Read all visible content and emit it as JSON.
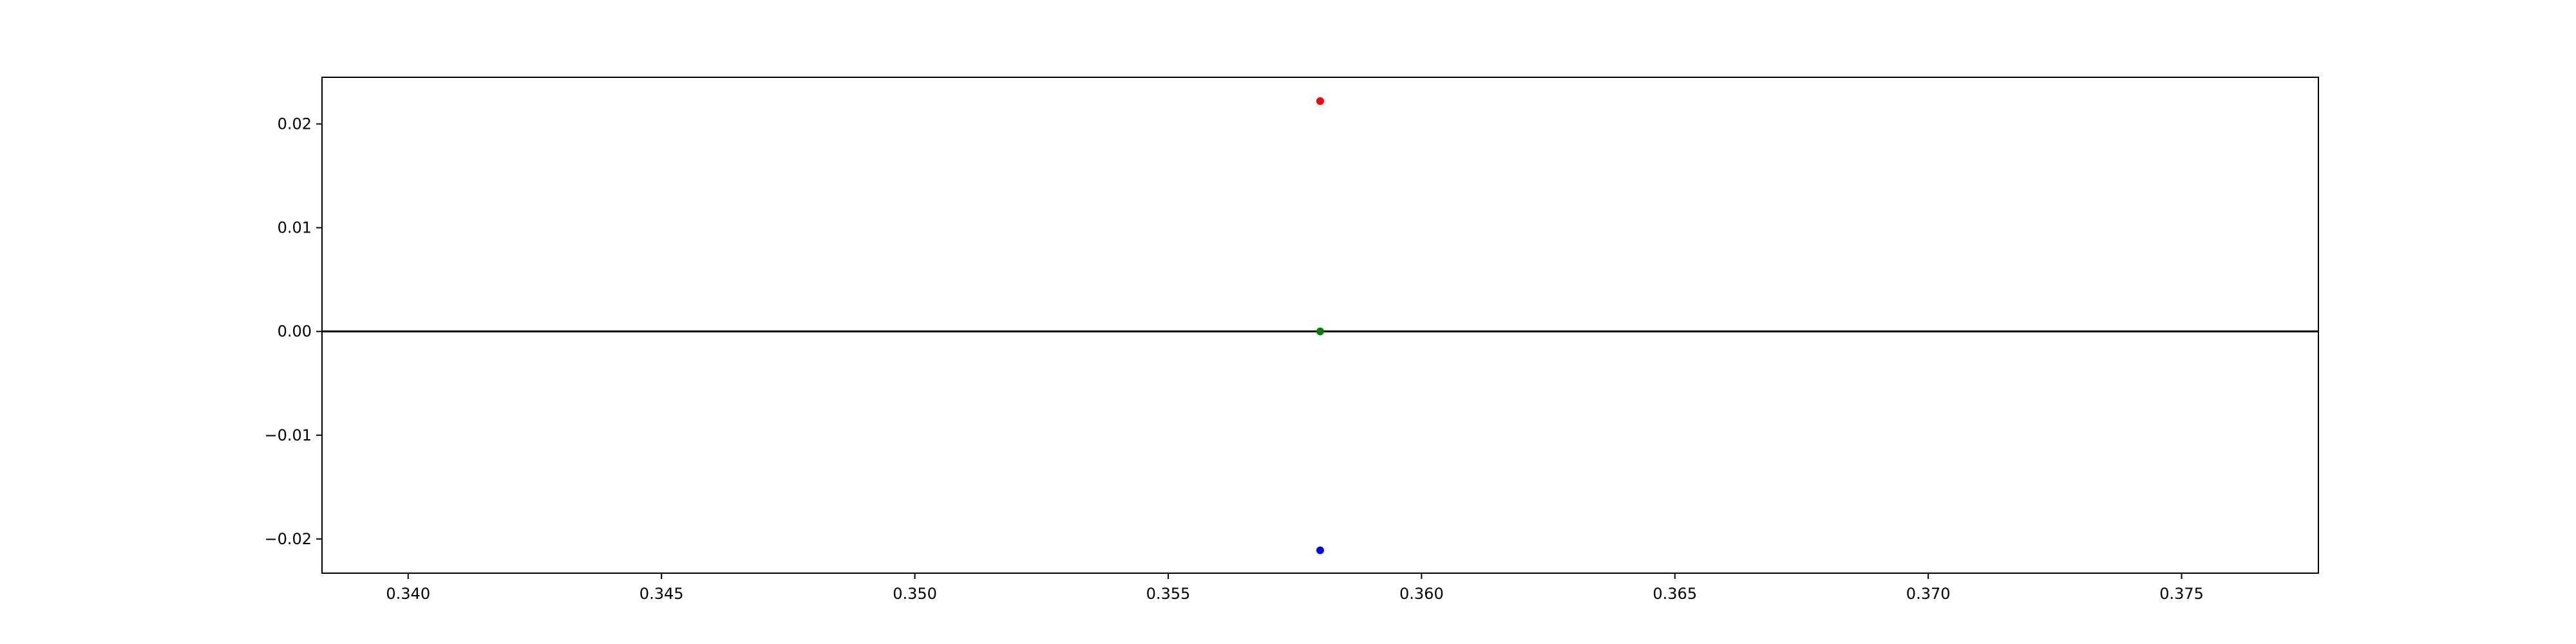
{
  "chart_data": {
    "type": "scatter",
    "title": "",
    "xlabel": "",
    "ylabel": "",
    "xlim": [
      0.3383,
      0.3777
    ],
    "ylim": [
      -0.0233,
      0.0245
    ],
    "grid": false,
    "legend": "none",
    "xticks": [
      "0.340",
      "0.345",
      "0.350",
      "0.355",
      "0.360",
      "0.365",
      "0.370",
      "0.375"
    ],
    "xtick_values": [
      0.34,
      0.345,
      0.35,
      0.355,
      0.36,
      0.365,
      0.37,
      0.375
    ],
    "yticks": [
      "0.02",
      "0.01",
      "0.00",
      "−0.01",
      "−0.02"
    ],
    "ytick_values": [
      0.02,
      0.01,
      0.0,
      -0.01,
      -0.02
    ],
    "reference_line": {
      "y": 0.0,
      "color": "#000000"
    },
    "points": [
      {
        "x": 0.358,
        "y": 0.0222,
        "color": "#ff0000"
      },
      {
        "x": 0.358,
        "y": 0.0,
        "color": "#008000"
      },
      {
        "x": 0.358,
        "y": -0.0211,
        "color": "#0000ff"
      }
    ]
  }
}
